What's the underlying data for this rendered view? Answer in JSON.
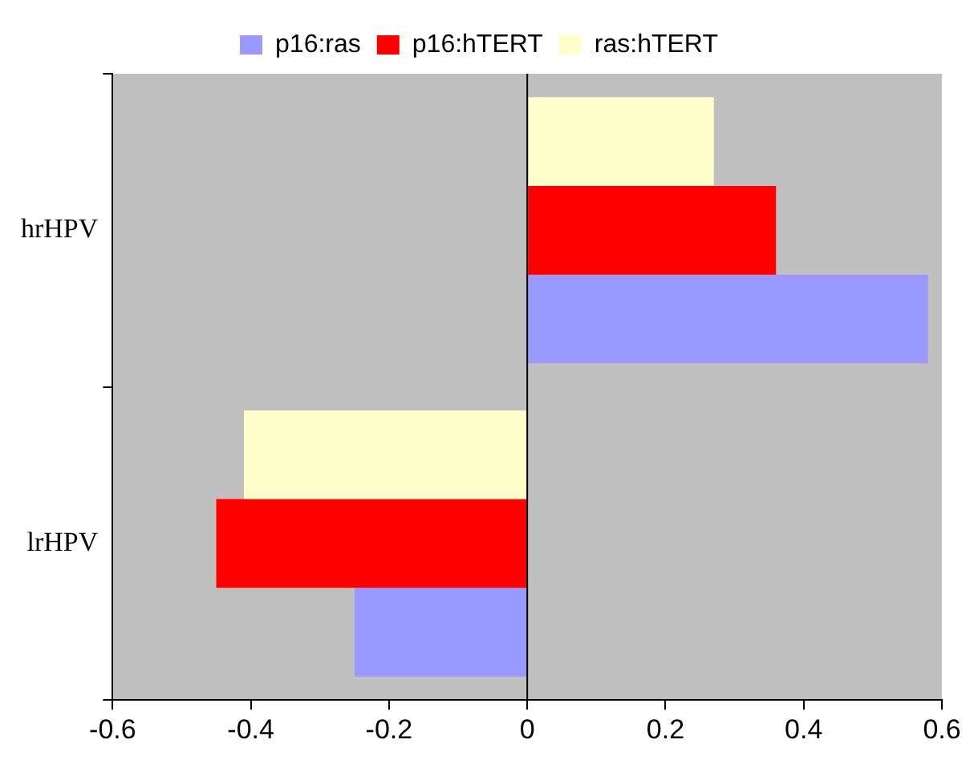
{
  "chart_data": {
    "type": "bar",
    "orientation": "horizontal",
    "categories": [
      "hrHPV",
      "lrHPV"
    ],
    "series": [
      {
        "name": "p16:ras",
        "color": "#9999ff",
        "values": [
          0.58,
          -0.25
        ]
      },
      {
        "name": "p16:hTERT",
        "color": "#ff0000",
        "values": [
          0.36,
          -0.45
        ]
      },
      {
        "name": "ras:hTERT",
        "color": "#ffffcc",
        "values": [
          0.27,
          -0.41
        ]
      }
    ],
    "xlim": [
      -0.6,
      0.6
    ],
    "xticks": [
      -0.6,
      -0.4,
      -0.2,
      0,
      0.2,
      0.4,
      0.6
    ],
    "grid": false,
    "legend": "top",
    "ref_lines": [
      {
        "axis": "x",
        "value": 0,
        "color": "#000000"
      }
    ]
  }
}
